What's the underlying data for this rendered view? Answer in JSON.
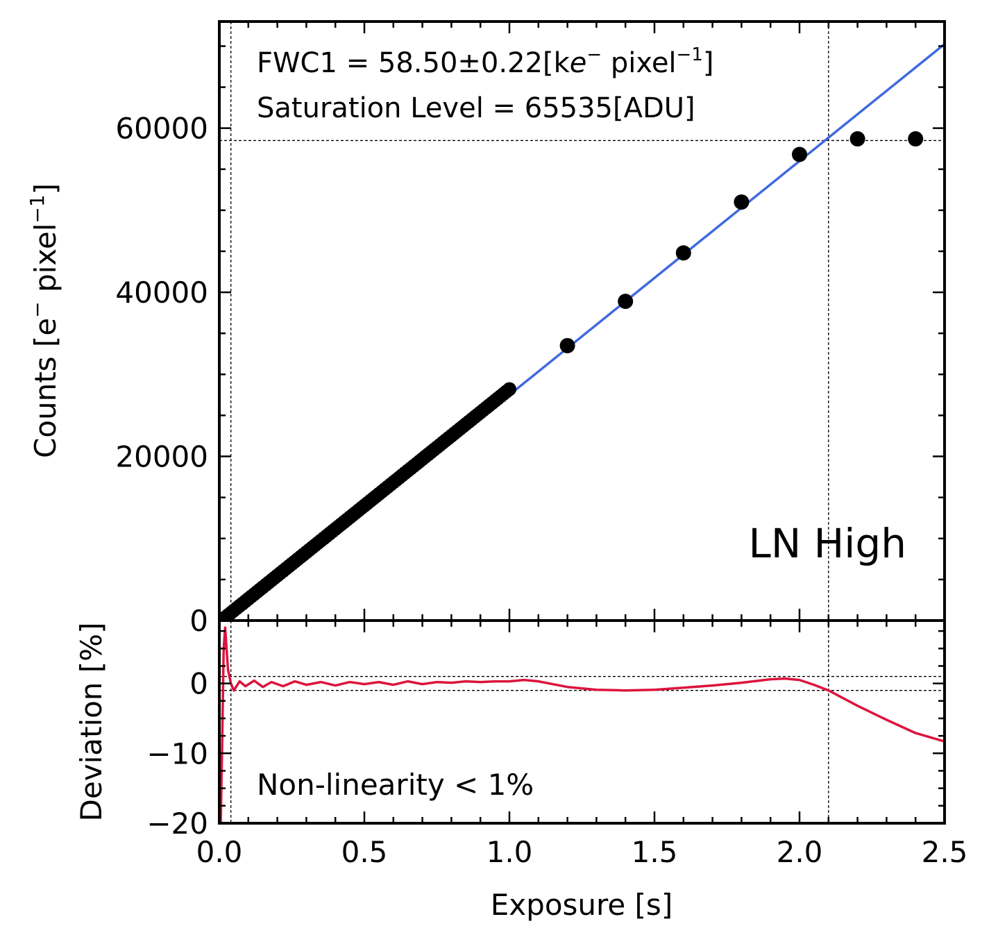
{
  "chart_data": [
    {
      "type": "scatter",
      "panel": "top",
      "xlim": [
        0,
        2.5
      ],
      "ylim": [
        0,
        73000
      ],
      "xlabel": "",
      "ylabel_main": "Counts [e",
      "ylabel_sup1": "−",
      "ylabel_mid": " pixel",
      "ylabel_sup2": "−1",
      "ylabel_end": "]",
      "ytick_labels": [
        {
          "value": 0,
          "label": "0"
        },
        {
          "value": 20000,
          "label": "20000"
        },
        {
          "value": 40000,
          "label": "40000"
        },
        {
          "value": 60000,
          "label": "60000"
        }
      ],
      "grid": false,
      "annotations": {
        "fwc_main": "FWC1 = 58.50±0.22[k",
        "fwc_e": "e",
        "fwc_sup1": "−",
        "fwc_mid": " pixel",
        "fwc_sup2": "−1",
        "fwc_end": "]",
        "saturation": "Saturation Level = 65535[ADU]",
        "mode_label": "LN High"
      },
      "fit_line": {
        "color": "#4169e1",
        "slope": 28500,
        "intercept": -1000,
        "x": [
          0,
          2.5
        ]
      },
      "reference_lines": {
        "hline_y": 58500,
        "vline_x1": 0.04,
        "vline_x2": 2.1
      },
      "dense_series": {
        "x_start": 0.01,
        "x_end": 1.0,
        "step": 0.01,
        "slope": 28400,
        "intercept": -200,
        "color": "#000000"
      },
      "points": [
        {
          "x": 1.2,
          "y": 33500
        },
        {
          "x": 1.4,
          "y": 38900
        },
        {
          "x": 1.6,
          "y": 44800
        },
        {
          "x": 1.8,
          "y": 51000
        },
        {
          "x": 2.0,
          "y": 56800
        },
        {
          "x": 2.2,
          "y": 58700
        },
        {
          "x": 2.4,
          "y": 58700
        }
      ]
    },
    {
      "type": "line",
      "panel": "bottom",
      "xlim": [
        0,
        2.5
      ],
      "ylim": [
        -20,
        9
      ],
      "xlabel": "Exposure [s]",
      "ylabel": "Deviation [%]",
      "xtick_labels": [
        {
          "value": 0,
          "label": "0.0"
        },
        {
          "value": 0.5,
          "label": "0.5"
        },
        {
          "value": 1.0,
          "label": "1.0"
        },
        {
          "value": 1.5,
          "label": "1.5"
        },
        {
          "value": 2.0,
          "label": "2.0"
        },
        {
          "value": 2.5,
          "label": "2.5"
        }
      ],
      "ytick_labels": [
        {
          "value": -20,
          "label": "−20"
        },
        {
          "value": -10,
          "label": "−10"
        },
        {
          "value": 0,
          "label": "0"
        }
      ],
      "annotation": "Non-linearity < 1%",
      "reference_lines": {
        "hline_y1": 1,
        "hline_y2": -1,
        "vline_x1": 0.04,
        "vline_x2": 2.1
      },
      "series": [
        {
          "color": "#dc143c",
          "x": [
            0.005,
            0.01,
            0.015,
            0.02,
            0.03,
            0.04,
            0.05,
            0.07,
            0.09,
            0.12,
            0.15,
            0.18,
            0.22,
            0.26,
            0.3,
            0.35,
            0.4,
            0.45,
            0.5,
            0.55,
            0.6,
            0.65,
            0.7,
            0.75,
            0.8,
            0.85,
            0.9,
            0.95,
            1.0,
            1.05,
            1.1,
            1.2,
            1.3,
            1.4,
            1.5,
            1.6,
            1.7,
            1.8,
            1.9,
            1.95,
            2.0,
            2.05,
            2.1,
            2.2,
            2.3,
            2.4,
            2.5
          ],
          "y": [
            -20,
            -8,
            5,
            8,
            2,
            0,
            -1,
            0.3,
            -0.4,
            0.4,
            -0.5,
            0.2,
            -0.4,
            0.3,
            -0.2,
            0.2,
            -0.3,
            0.2,
            -0.1,
            0.2,
            -0.2,
            0.3,
            -0.1,
            0.2,
            0.1,
            0.3,
            0.2,
            0.3,
            0.3,
            0.5,
            0.3,
            -0.5,
            -0.9,
            -1.0,
            -0.9,
            -0.6,
            -0.3,
            0.1,
            0.6,
            0.7,
            0.5,
            -0.2,
            -1.0,
            -3.2,
            -5.2,
            -7.1,
            -8.3
          ]
        }
      ]
    }
  ]
}
